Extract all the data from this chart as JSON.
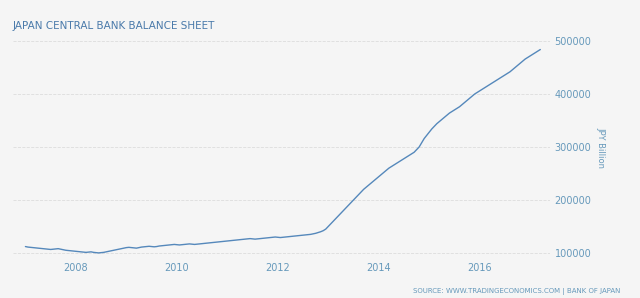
{
  "title": "JAPAN CENTRAL BANK BALANCE SHEET",
  "ylabel": "JPY Billion",
  "source_text": "SOURCE: WWW.TRADINGECONOMICS.COM | BANK OF JAPAN",
  "title_color": "#4a7aaa",
  "line_color": "#5588bb",
  "background_color": "#f5f5f5",
  "grid_color": "#dddddd",
  "text_color": "#6699bb",
  "ylim": [
    88000,
    510000
  ],
  "yticks": [
    100000,
    200000,
    300000,
    400000,
    500000
  ],
  "x_start_year": 2006.75,
  "x_end_year": 2017.4,
  "xticks_years": [
    2008,
    2010,
    2012,
    2014,
    2016
  ],
  "data_points": [
    [
      2007.0,
      112000
    ],
    [
      2007.05,
      111000
    ],
    [
      2007.1,
      110500
    ],
    [
      2007.15,
      110000
    ],
    [
      2007.2,
      109500
    ],
    [
      2007.25,
      109000
    ],
    [
      2007.3,
      108500
    ],
    [
      2007.35,
      108000
    ],
    [
      2007.4,
      107500
    ],
    [
      2007.45,
      107000
    ],
    [
      2007.5,
      106500
    ],
    [
      2007.55,
      107000
    ],
    [
      2007.6,
      107500
    ],
    [
      2007.65,
      108000
    ],
    [
      2007.7,
      107000
    ],
    [
      2007.75,
      106000
    ],
    [
      2007.8,
      105000
    ],
    [
      2007.85,
      104500
    ],
    [
      2007.9,
      104000
    ],
    [
      2007.95,
      103500
    ],
    [
      2008.0,
      103000
    ],
    [
      2008.05,
      102500
    ],
    [
      2008.1,
      102000
    ],
    [
      2008.15,
      101500
    ],
    [
      2008.2,
      101000
    ],
    [
      2008.25,
      101500
    ],
    [
      2008.3,
      102000
    ],
    [
      2008.35,
      101000
    ],
    [
      2008.4,
      100500
    ],
    [
      2008.45,
      100000
    ],
    [
      2008.5,
      100500
    ],
    [
      2008.55,
      101000
    ],
    [
      2008.6,
      102000
    ],
    [
      2008.65,
      103000
    ],
    [
      2008.7,
      104000
    ],
    [
      2008.75,
      105000
    ],
    [
      2008.8,
      106000
    ],
    [
      2008.85,
      107000
    ],
    [
      2008.9,
      108000
    ],
    [
      2008.95,
      109000
    ],
    [
      2009.0,
      110000
    ],
    [
      2009.05,
      110500
    ],
    [
      2009.1,
      110000
    ],
    [
      2009.15,
      109500
    ],
    [
      2009.2,
      109000
    ],
    [
      2009.25,
      110000
    ],
    [
      2009.3,
      111000
    ],
    [
      2009.35,
      111500
    ],
    [
      2009.4,
      112000
    ],
    [
      2009.45,
      112500
    ],
    [
      2009.5,
      112000
    ],
    [
      2009.55,
      111500
    ],
    [
      2009.6,
      112000
    ],
    [
      2009.65,
      113000
    ],
    [
      2009.7,
      113500
    ],
    [
      2009.75,
      114000
    ],
    [
      2009.8,
      114500
    ],
    [
      2009.85,
      115000
    ],
    [
      2009.9,
      115500
    ],
    [
      2009.95,
      116000
    ],
    [
      2010.0,
      115500
    ],
    [
      2010.05,
      115000
    ],
    [
      2010.1,
      115500
    ],
    [
      2010.15,
      116000
    ],
    [
      2010.2,
      116500
    ],
    [
      2010.25,
      117000
    ],
    [
      2010.3,
      116500
    ],
    [
      2010.35,
      116000
    ],
    [
      2010.4,
      116500
    ],
    [
      2010.45,
      117000
    ],
    [
      2010.5,
      117500
    ],
    [
      2010.55,
      118000
    ],
    [
      2010.6,
      118500
    ],
    [
      2010.65,
      119000
    ],
    [
      2010.7,
      119500
    ],
    [
      2010.75,
      120000
    ],
    [
      2010.8,
      120500
    ],
    [
      2010.85,
      121000
    ],
    [
      2010.9,
      121500
    ],
    [
      2010.95,
      122000
    ],
    [
      2011.0,
      122500
    ],
    [
      2011.05,
      123000
    ],
    [
      2011.1,
      123500
    ],
    [
      2011.15,
      124000
    ],
    [
      2011.2,
      124500
    ],
    [
      2011.25,
      125000
    ],
    [
      2011.3,
      125500
    ],
    [
      2011.35,
      126000
    ],
    [
      2011.4,
      126500
    ],
    [
      2011.45,
      127000
    ],
    [
      2011.5,
      126500
    ],
    [
      2011.55,
      126000
    ],
    [
      2011.6,
      126500
    ],
    [
      2011.65,
      127000
    ],
    [
      2011.7,
      127500
    ],
    [
      2011.75,
      128000
    ],
    [
      2011.8,
      128500
    ],
    [
      2011.85,
      129000
    ],
    [
      2011.9,
      129500
    ],
    [
      2011.95,
      130000
    ],
    [
      2012.0,
      129500
    ],
    [
      2012.05,
      129000
    ],
    [
      2012.1,
      129500
    ],
    [
      2012.15,
      130000
    ],
    [
      2012.2,
      130500
    ],
    [
      2012.25,
      131000
    ],
    [
      2012.3,
      131500
    ],
    [
      2012.35,
      132000
    ],
    [
      2012.4,
      132500
    ],
    [
      2012.45,
      133000
    ],
    [
      2012.5,
      133500
    ],
    [
      2012.55,
      134000
    ],
    [
      2012.6,
      134500
    ],
    [
      2012.65,
      135000
    ],
    [
      2012.7,
      136000
    ],
    [
      2012.75,
      137000
    ],
    [
      2012.8,
      138500
    ],
    [
      2012.85,
      140000
    ],
    [
      2012.9,
      142000
    ],
    [
      2012.95,
      145000
    ],
    [
      2013.0,
      150000
    ],
    [
      2013.05,
      155000
    ],
    [
      2013.1,
      160000
    ],
    [
      2013.15,
      165000
    ],
    [
      2013.2,
      170000
    ],
    [
      2013.25,
      175000
    ],
    [
      2013.3,
      180000
    ],
    [
      2013.35,
      185000
    ],
    [
      2013.4,
      190000
    ],
    [
      2013.45,
      195000
    ],
    [
      2013.5,
      200000
    ],
    [
      2013.55,
      205000
    ],
    [
      2013.6,
      210000
    ],
    [
      2013.65,
      215000
    ],
    [
      2013.7,
      220000
    ],
    [
      2013.75,
      224000
    ],
    [
      2013.8,
      228000
    ],
    [
      2013.85,
      232000
    ],
    [
      2013.9,
      236000
    ],
    [
      2013.95,
      240000
    ],
    [
      2014.0,
      244000
    ],
    [
      2014.05,
      248000
    ],
    [
      2014.1,
      252000
    ],
    [
      2014.15,
      256000
    ],
    [
      2014.2,
      260000
    ],
    [
      2014.25,
      263000
    ],
    [
      2014.3,
      266000
    ],
    [
      2014.35,
      269000
    ],
    [
      2014.4,
      272000
    ],
    [
      2014.45,
      275000
    ],
    [
      2014.5,
      278000
    ],
    [
      2014.55,
      281000
    ],
    [
      2014.6,
      284000
    ],
    [
      2014.65,
      287000
    ],
    [
      2014.7,
      290000
    ],
    [
      2014.75,
      295000
    ],
    [
      2014.8,
      300000
    ],
    [
      2014.85,
      308000
    ],
    [
      2014.9,
      316000
    ],
    [
      2014.95,
      322000
    ],
    [
      2015.0,
      328000
    ],
    [
      2015.05,
      334000
    ],
    [
      2015.1,
      339000
    ],
    [
      2015.15,
      344000
    ],
    [
      2015.2,
      348000
    ],
    [
      2015.25,
      352000
    ],
    [
      2015.3,
      356000
    ],
    [
      2015.35,
      360000
    ],
    [
      2015.4,
      364000
    ],
    [
      2015.45,
      367000
    ],
    [
      2015.5,
      370000
    ],
    [
      2015.55,
      373000
    ],
    [
      2015.6,
      376000
    ],
    [
      2015.65,
      380000
    ],
    [
      2015.7,
      384000
    ],
    [
      2015.75,
      388000
    ],
    [
      2015.8,
      392000
    ],
    [
      2015.85,
      396000
    ],
    [
      2015.9,
      400000
    ],
    [
      2015.95,
      403000
    ],
    [
      2016.0,
      406000
    ],
    [
      2016.05,
      409000
    ],
    [
      2016.1,
      412000
    ],
    [
      2016.15,
      415000
    ],
    [
      2016.2,
      418000
    ],
    [
      2016.25,
      421000
    ],
    [
      2016.3,
      424000
    ],
    [
      2016.35,
      427000
    ],
    [
      2016.4,
      430000
    ],
    [
      2016.45,
      433000
    ],
    [
      2016.5,
      436000
    ],
    [
      2016.55,
      439000
    ],
    [
      2016.6,
      442000
    ],
    [
      2016.65,
      446000
    ],
    [
      2016.7,
      450000
    ],
    [
      2016.75,
      454000
    ],
    [
      2016.8,
      458000
    ],
    [
      2016.85,
      462000
    ],
    [
      2016.9,
      466000
    ],
    [
      2016.95,
      469000
    ],
    [
      2017.0,
      472000
    ],
    [
      2017.05,
      475000
    ],
    [
      2017.1,
      478000
    ],
    [
      2017.15,
      481000
    ],
    [
      2017.2,
      484000
    ]
  ]
}
